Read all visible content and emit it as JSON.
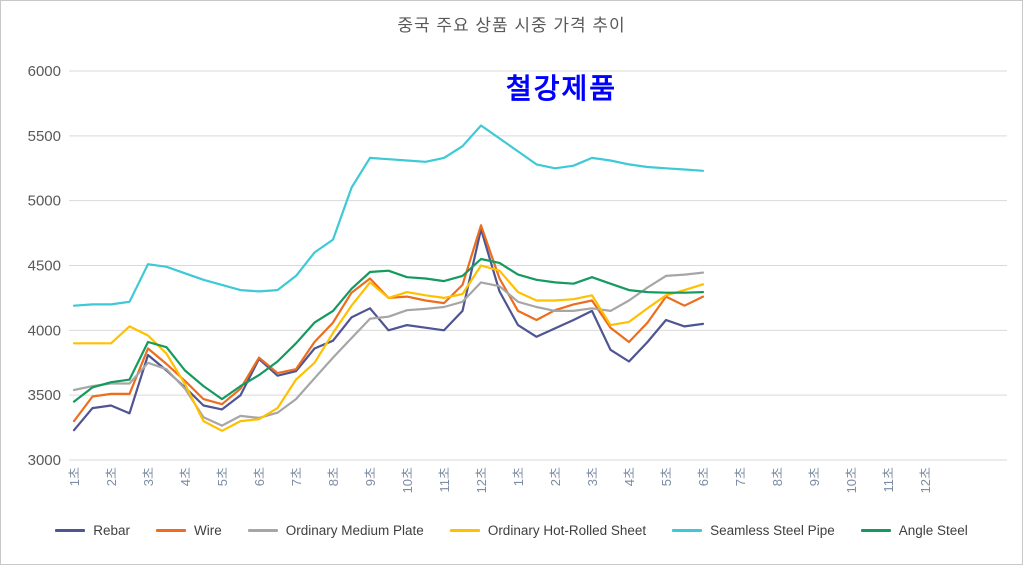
{
  "chart": {
    "title": "중국 주요 상품 시중 가격 추이",
    "subtitle": "철강제품",
    "subtitle_color": "#0000ff",
    "title_color": "#595959",
    "gridline_color": "#d9d9d9",
    "y_label_color": "#595959",
    "x_label_color": "#7d8ca3"
  },
  "chart_data": {
    "type": "line",
    "title": "중국 주요 상품 시중 가격 추이",
    "subtitle": "철강제품",
    "ylim": [
      3000,
      6000
    ],
    "y_ticks": [
      3000,
      3500,
      4000,
      4500,
      5000,
      5500,
      6000
    ],
    "grid": true,
    "legend_position": "bottom",
    "x_tick_labels": [
      "1초",
      "2초",
      "3초",
      "4초",
      "5초",
      "6초",
      "7초",
      "8초",
      "9초",
      "10초",
      "11초",
      "12초",
      "1초",
      "2초",
      "3초",
      "4초",
      "5초",
      "6초",
      "7초",
      "8초",
      "9초",
      "10초",
      "11초",
      "12초"
    ],
    "x_note": "series sampled every half tick starting at tick 1; data ends at tick 18",
    "x_start": 1,
    "x_step": 0.5,
    "series": [
      {
        "name": "Rebar",
        "color": "#4f5492",
        "values": [
          3230,
          3400,
          3420,
          3360,
          3810,
          3690,
          3560,
          3420,
          3390,
          3500,
          3780,
          3650,
          3685,
          3860,
          3920,
          4100,
          4170,
          4000,
          4040,
          4020,
          4000,
          4150,
          4780,
          4300,
          4040,
          3950,
          4015,
          4080,
          4150,
          3850,
          3760,
          3910,
          4080,
          4030,
          4050
        ]
      },
      {
        "name": "Wire",
        "color": "#ed6d1e",
        "values": [
          3300,
          3490,
          3510,
          3510,
          3860,
          3740,
          3610,
          3470,
          3430,
          3550,
          3790,
          3670,
          3700,
          3910,
          4060,
          4290,
          4400,
          4250,
          4260,
          4230,
          4210,
          4350,
          4810,
          4400,
          4150,
          4080,
          4155,
          4200,
          4230,
          4020,
          3910,
          4060,
          4260,
          4190,
          4260
        ]
      },
      {
        "name": "Ordinary Medium Plate",
        "color": "#a6a6a6",
        "values": [
          3540,
          3570,
          3590,
          3590,
          3750,
          3700,
          3550,
          3330,
          3265,
          3340,
          3325,
          3365,
          3470,
          3630,
          3790,
          3940,
          4090,
          4105,
          4155,
          4165,
          4180,
          4220,
          4370,
          4340,
          4220,
          4180,
          4150,
          4150,
          4170,
          4150,
          4230,
          4330,
          4420,
          4430,
          4445
        ]
      },
      {
        "name": "Ordinary Hot-Rolled Sheet",
        "color": "#ffc000",
        "values": [
          3900,
          3900,
          3900,
          4030,
          3960,
          3820,
          3585,
          3300,
          3225,
          3300,
          3315,
          3400,
          3620,
          3750,
          3980,
          4190,
          4370,
          4250,
          4295,
          4270,
          4250,
          4280,
          4500,
          4460,
          4295,
          4230,
          4230,
          4240,
          4270,
          4040,
          4065,
          4170,
          4270,
          4310,
          4355
        ]
      },
      {
        "name": "Seamless Steel Pipe",
        "color": "#3ec9d6",
        "values": [
          4190,
          4200,
          4200,
          4220,
          4510,
          4490,
          4440,
          4390,
          4350,
          4310,
          4300,
          4310,
          4420,
          4600,
          4700,
          5100,
          5330,
          5320,
          5310,
          5300,
          5330,
          5420,
          5580,
          5480,
          5380,
          5280,
          5250,
          5270,
          5330,
          5310,
          5280,
          5260,
          5250,
          5240,
          5230
        ]
      },
      {
        "name": "Angle Steel",
        "color": "#149a5f",
        "values": [
          3450,
          3560,
          3600,
          3620,
          3910,
          3870,
          3690,
          3570,
          3470,
          3570,
          3655,
          3760,
          3900,
          4060,
          4150,
          4320,
          4450,
          4460,
          4410,
          4400,
          4380,
          4420,
          4550,
          4520,
          4430,
          4390,
          4370,
          4360,
          4410,
          4360,
          4310,
          4295,
          4290,
          4290,
          4295
        ]
      }
    ]
  }
}
